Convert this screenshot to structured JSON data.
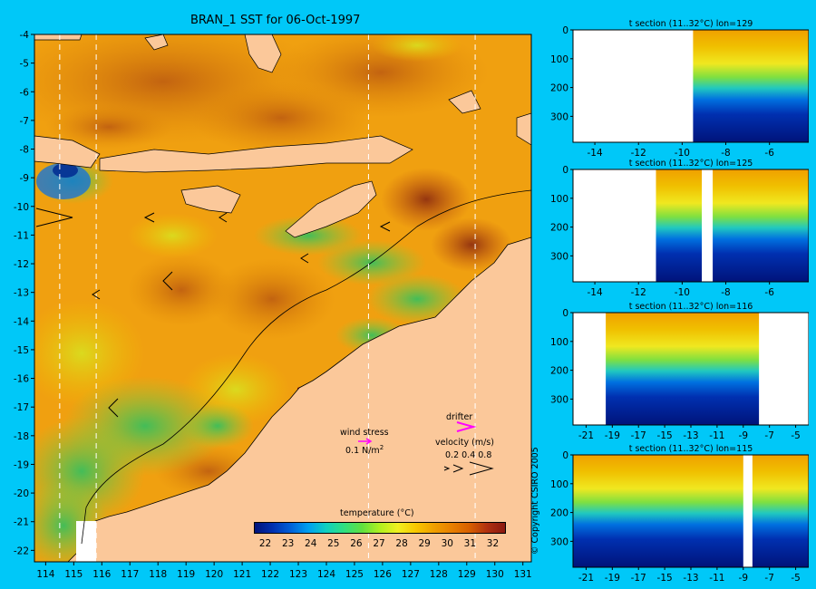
{
  "colors": {
    "background": "#00c8f8",
    "land": "#fbc89a",
    "missing": "#ffffff",
    "colorscale": [
      "#00137a",
      "#0030b0",
      "#0060d8",
      "#00a0f0",
      "#10d0c0",
      "#30e080",
      "#60e040",
      "#b0f020",
      "#f0f020",
      "#f8c800",
      "#f0a000",
      "#e88000",
      "#d86000",
      "#b03010",
      "#8a1810"
    ],
    "drifter": "#ff00ff"
  },
  "main_map": {
    "title": "BRAN_1 SST for 06-Oct-1997",
    "lon_ticks": [
      "114",
      "115",
      "116",
      "117",
      "118",
      "119",
      "120",
      "121",
      "122",
      "123",
      "124",
      "125",
      "126",
      "127",
      "128",
      "129",
      "130",
      "131"
    ],
    "lat_ticks": [
      "-4",
      "-5",
      "-6",
      "-7",
      "-8",
      "-9",
      "-10",
      "-11",
      "-12",
      "-13",
      "-14",
      "-15",
      "-16",
      "-17",
      "-18",
      "-19",
      "-20",
      "-21",
      "-22"
    ],
    "section_lons": [
      114.5,
      115.8,
      125.5,
      129.3
    ]
  },
  "colorbar": {
    "title": "temperature (°C)",
    "ticks": [
      "22",
      "23",
      "24",
      "25",
      "26",
      "27",
      "28",
      "29",
      "30",
      "31",
      "32"
    ]
  },
  "legend": {
    "wind_stress_label": "wind stress",
    "wind_stress_value": "0.1 N/m",
    "wind_stress_exponent": "2",
    "drifter_label": "drifter",
    "velocity_label": "velocity (m/s)",
    "velocity_values": "0.2 0.4 0.8"
  },
  "sections": [
    {
      "title": "t section (11..32°C) lon=129",
      "x_ticks": [
        "-14",
        "-12",
        "-10",
        "-8",
        "-6"
      ],
      "y_ticks": [
        "0",
        "100",
        "200",
        "300"
      ]
    },
    {
      "title": "t section (11..32°C) lon=125",
      "x_ticks": [
        "-14",
        "-12",
        "-10",
        "-8",
        "-6"
      ],
      "y_ticks": [
        "0",
        "100",
        "200",
        "300"
      ]
    },
    {
      "title": "t section (11..32°C) lon=116",
      "x_ticks": [
        "-21",
        "-19",
        "-17",
        "-15",
        "-13",
        "-11",
        "-9",
        "-7",
        "-5"
      ],
      "y_ticks": [
        "0",
        "100",
        "200",
        "300"
      ]
    },
    {
      "title": "t section (11..32°C) lon=115",
      "x_ticks": [
        "-21",
        "-19",
        "-17",
        "-15",
        "-13",
        "-11",
        "-9",
        "-7",
        "-5"
      ],
      "y_ticks": [
        "0",
        "100",
        "200",
        "300"
      ]
    }
  ],
  "copyright": "© Copyright CSIRO 2005",
  "chart_data": [
    {
      "type": "heatmap",
      "title": "BRAN_1 SST for 06-Oct-1997",
      "xlabel": "",
      "ylabel": "",
      "xlim": [
        113.6,
        131.3
      ],
      "ylim": [
        -22.4,
        -4
      ],
      "colorbar_range": [
        21.5,
        32.5
      ],
      "colorbar_label": "temperature (°C)"
    },
    {
      "type": "heatmap",
      "title": "t section (11..32°C) lon=129",
      "xlim": [
        -15,
        -4.2
      ],
      "ylim": [
        390,
        0
      ]
    },
    {
      "type": "heatmap",
      "title": "t section (11..32°C) lon=125",
      "xlim": [
        -15,
        -4.2
      ],
      "ylim": [
        390,
        0
      ]
    },
    {
      "type": "heatmap",
      "title": "t section (11..32°C) lon=116",
      "xlim": [
        -22,
        -4
      ],
      "ylim": [
        390,
        0
      ]
    },
    {
      "type": "heatmap",
      "title": "t section (11..32°C) lon=115",
      "xlim": [
        -22,
        -4
      ],
      "ylim": [
        390,
        0
      ]
    }
  ]
}
